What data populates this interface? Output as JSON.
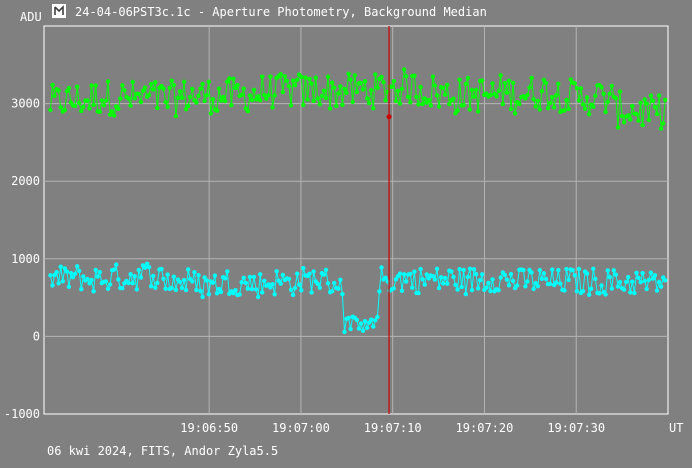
{
  "window": {
    "title": "24-04-06PST3c.1c - Aperture Photometry, Background Median",
    "footer": "06 kwi 2024, FITS, Andor Zyla5.5",
    "icon": "app-logo-icon"
  },
  "chart_data": {
    "type": "line",
    "ylabel": "ADU",
    "xlabel": "UT",
    "ylim": [
      -1000,
      4000
    ],
    "y_ticks": [
      -1000,
      0,
      1000,
      2000,
      3000
    ],
    "y_tick_labels": [
      "-1000",
      "0",
      "1000",
      "2000",
      "3000"
    ],
    "x_range_seconds": [
      -28,
      40
    ],
    "x_ticks": [
      "19:06:50",
      "19:07:00",
      "19:07:10",
      "19:07:20",
      "19:07:30"
    ],
    "x_tick_seconds": [
      -10,
      0,
      10,
      20,
      30
    ],
    "cursor_x": "19:07:09.6",
    "cursor_marker_value": 2830,
    "grid": true,
    "series": [
      {
        "color": "#00ff00",
        "base_level": 3050,
        "noise_amplitude": 230,
        "point_count": 300
      },
      {
        "color": "#00ffff",
        "base_level": 720,
        "noise_amplitude": 170,
        "point_count": 300,
        "dip_range": [
          "19:07:04.7",
          "19:07:08.5"
        ],
        "dip_level": 150
      }
    ],
    "colors": {
      "grid": "#b4b4b4",
      "cursor": "#cc0000",
      "axes": "#ffffff"
    }
  }
}
